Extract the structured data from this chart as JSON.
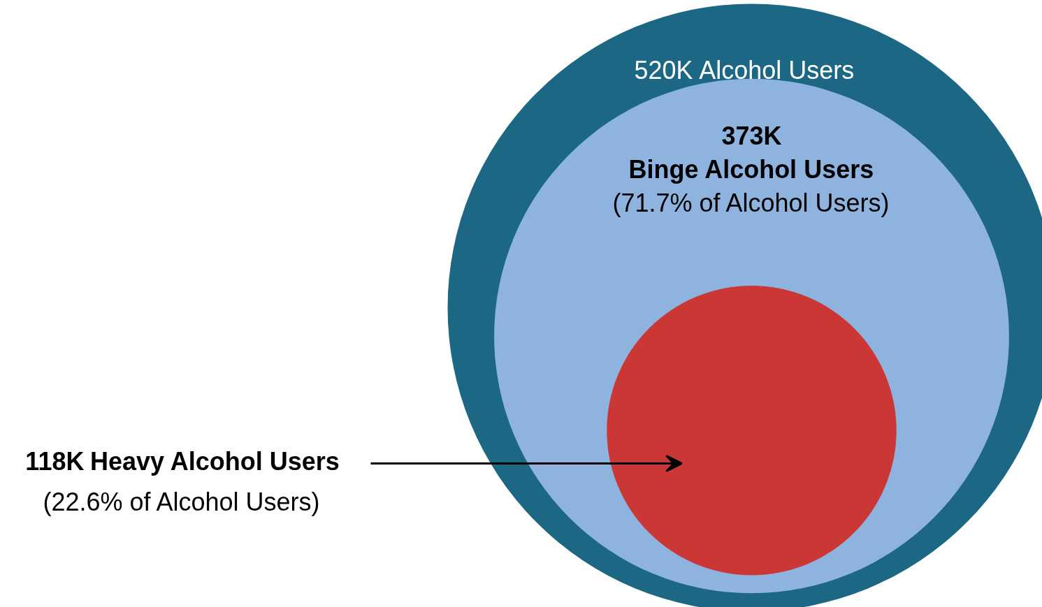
{
  "chart_data": {
    "type": "other",
    "categories": [
      "Alcohol Users",
      "Binge Alcohol Users",
      "Heavy Alcohol Users"
    ],
    "values": [
      520,
      373,
      118
    ],
    "value_labels": [
      "520K",
      "373K",
      "118K"
    ],
    "colors": [
      "#1c6784",
      "#8fb3df",
      "#cb3734"
    ],
    "annotations": [
      "(71.7% of Alcohol Users)",
      "(22.6% of Alcohol Users)"
    ]
  }
}
